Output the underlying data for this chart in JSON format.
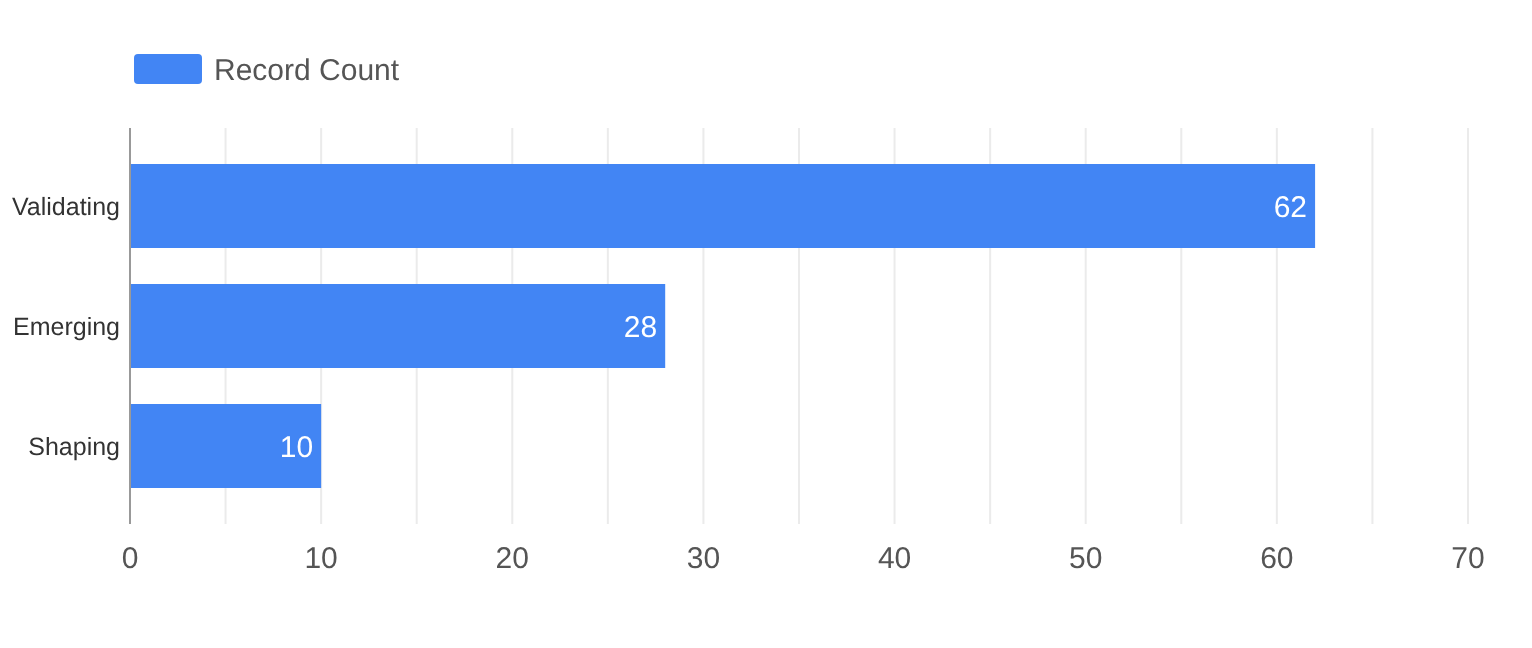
{
  "chart_data": {
    "type": "bar",
    "orientation": "horizontal",
    "categories": [
      "Validating",
      "Emerging",
      "Shaping"
    ],
    "series": [
      {
        "name": "Record Count",
        "color": "#4285f4",
        "values": [
          62,
          28,
          10
        ]
      }
    ],
    "xlim": [
      0,
      70
    ],
    "xticks": [
      0,
      {
        "value": 5,
        "label": null
      },
      10,
      {
        "value": 15,
        "label": null
      },
      20,
      {
        "value": 25,
        "label": null
      },
      30,
      {
        "value": 35,
        "label": null
      },
      40,
      {
        "value": 45,
        "label": null
      },
      50,
      {
        "value": 55,
        "label": null
      },
      60,
      {
        "value": 65,
        "label": null
      },
      70
    ],
    "grid": "x",
    "legend": "top left",
    "data_labels": true
  }
}
